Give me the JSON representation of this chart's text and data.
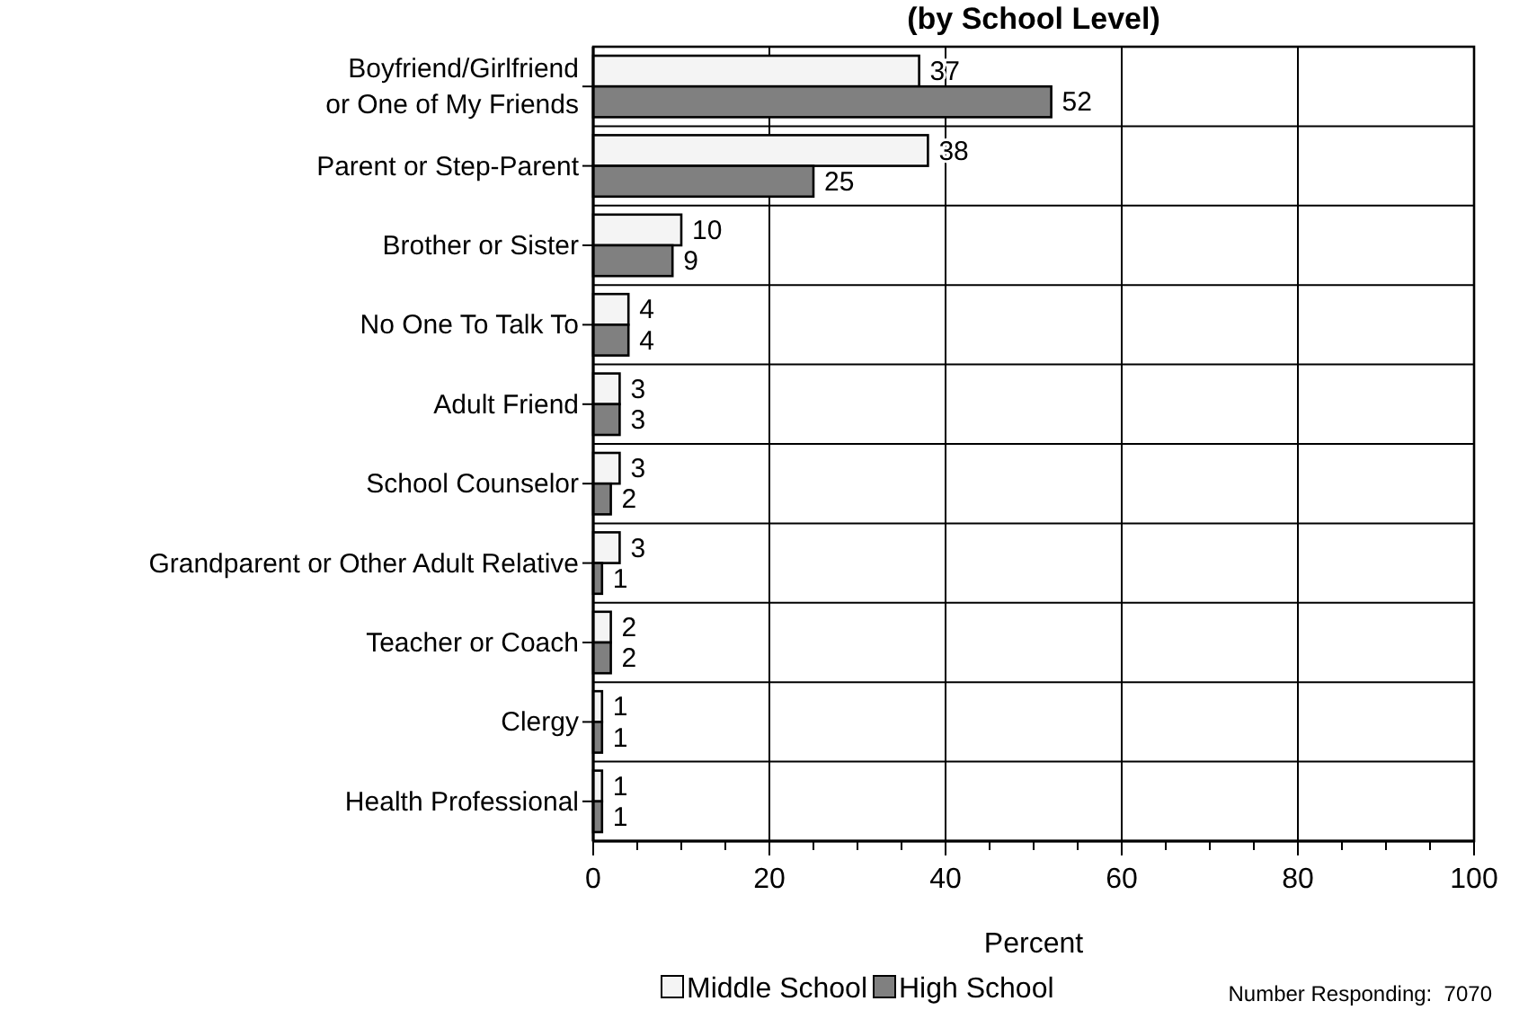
{
  "chart_data": {
    "type": "bar",
    "orientation": "horizontal",
    "title": "(by School Level)",
    "xlabel": "Percent",
    "categories": [
      "Boyfriend/Girlfriend or One of My Friends",
      "Parent or Step-Parent",
      "Brother or Sister",
      "No One To Talk To",
      "Adult Friend",
      "School Counselor",
      "Grandparent or Other Adult Relative",
      "Teacher or Coach",
      "Clergy",
      "Health Professional"
    ],
    "series": [
      {
        "name": "Middle School",
        "color": "#f4f4f4",
        "values": [
          37,
          38,
          10,
          4,
          3,
          3,
          3,
          2,
          1,
          1
        ]
      },
      {
        "name": "High School",
        "color": "#808080",
        "values": [
          52,
          25,
          9,
          4,
          3,
          2,
          1,
          2,
          1,
          1
        ]
      }
    ],
    "xlim": [
      0,
      100
    ],
    "xticks": [
      0,
      {
        "value": 5,
        "label": null
      },
      {
        "value": 10,
        "label": null
      },
      {
        "value": 15,
        "label": null
      },
      20,
      {
        "value": 25,
        "label": null
      },
      {
        "value": 30,
        "label": null
      },
      {
        "value": 35,
        "label": null
      },
      40,
      {
        "value": 45,
        "label": null
      },
      {
        "value": 50,
        "label": null
      },
      {
        "value": 55,
        "label": null
      },
      60,
      {
        "value": 65,
        "label": null
      },
      {
        "value": 70,
        "label": null
      },
      {
        "value": 75,
        "label": null
      },
      80,
      {
        "value": 85,
        "label": null
      },
      {
        "value": 90,
        "label": null
      },
      {
        "value": 95,
        "label": null
      },
      100
    ],
    "grid": true,
    "data_labels": true,
    "legend": "bottom",
    "annotations": [
      "Number Responding:  7070"
    ]
  }
}
